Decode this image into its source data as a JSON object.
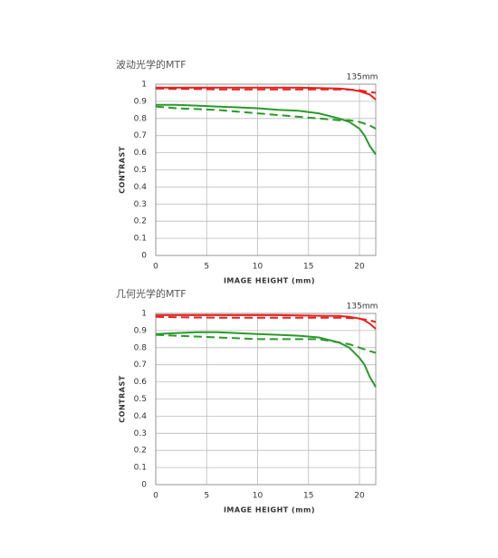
{
  "chart_data": [
    {
      "type": "line",
      "title": "波动光学的MTF",
      "annotation": "135mm",
      "xlabel": "IMAGE HEIGHT (mm)",
      "ylabel": "CONTRAST",
      "xlim": [
        0,
        21.6
      ],
      "ylim": [
        0,
        1
      ],
      "xticks": [
        0,
        5,
        10,
        15,
        20
      ],
      "yticks": [
        0,
        0.1,
        0.2,
        0.3,
        0.4,
        0.5,
        0.6,
        0.7,
        0.8,
        0.9,
        1
      ],
      "grid": true,
      "x": [
        0,
        2,
        4,
        6,
        8,
        10,
        12,
        14,
        16,
        18,
        19,
        20,
        20.5,
        21,
        21.6
      ],
      "series": [
        {
          "color": "#e8211d",
          "dash": false,
          "values": [
            0.98,
            0.98,
            0.98,
            0.98,
            0.98,
            0.98,
            0.98,
            0.98,
            0.978,
            0.975,
            0.97,
            0.96,
            0.95,
            0.94,
            0.91
          ]
        },
        {
          "color": "#e8211d",
          "dash": true,
          "values": [
            0.975,
            0.973,
            0.972,
            0.97,
            0.97,
            0.97,
            0.97,
            0.97,
            0.97,
            0.97,
            0.968,
            0.965,
            0.96,
            0.955,
            0.95
          ]
        },
        {
          "color": "#2a9a2a",
          "dash": false,
          "values": [
            0.88,
            0.88,
            0.875,
            0.87,
            0.865,
            0.86,
            0.85,
            0.845,
            0.83,
            0.8,
            0.78,
            0.74,
            0.7,
            0.64,
            0.59
          ]
        },
        {
          "color": "#2a9a2a",
          "dash": true,
          "values": [
            0.87,
            0.86,
            0.855,
            0.85,
            0.84,
            0.83,
            0.82,
            0.81,
            0.8,
            0.79,
            0.79,
            0.78,
            0.77,
            0.76,
            0.74
          ]
        }
      ]
    },
    {
      "type": "line",
      "title": "几何光学的MTF",
      "annotation": "135mm",
      "xlabel": "IMAGE HEIGHT (mm)",
      "ylabel": "CONTRAST",
      "xlim": [
        0,
        21.6
      ],
      "ylim": [
        0,
        1
      ],
      "xticks": [
        0,
        5,
        10,
        15,
        20
      ],
      "yticks": [
        0,
        0.1,
        0.2,
        0.3,
        0.4,
        0.5,
        0.6,
        0.7,
        0.8,
        0.9,
        1
      ],
      "grid": true,
      "x": [
        0,
        2,
        4,
        6,
        8,
        10,
        12,
        14,
        16,
        18,
        19,
        20,
        20.5,
        21,
        21.6
      ],
      "series": [
        {
          "color": "#e8211d",
          "dash": false,
          "values": [
            0.99,
            0.99,
            0.99,
            0.99,
            0.99,
            0.99,
            0.99,
            0.988,
            0.986,
            0.985,
            0.98,
            0.97,
            0.96,
            0.94,
            0.91
          ]
        },
        {
          "color": "#e8211d",
          "dash": true,
          "values": [
            0.98,
            0.978,
            0.976,
            0.975,
            0.975,
            0.975,
            0.975,
            0.975,
            0.975,
            0.975,
            0.973,
            0.97,
            0.965,
            0.96,
            0.95
          ]
        },
        {
          "color": "#2a9a2a",
          "dash": false,
          "values": [
            0.88,
            0.885,
            0.89,
            0.89,
            0.885,
            0.88,
            0.875,
            0.87,
            0.86,
            0.83,
            0.8,
            0.74,
            0.7,
            0.63,
            0.57
          ]
        },
        {
          "color": "#2a9a2a",
          "dash": true,
          "values": [
            0.875,
            0.87,
            0.865,
            0.86,
            0.855,
            0.85,
            0.85,
            0.85,
            0.85,
            0.83,
            0.82,
            0.8,
            0.79,
            0.78,
            0.77
          ]
        }
      ]
    }
  ]
}
